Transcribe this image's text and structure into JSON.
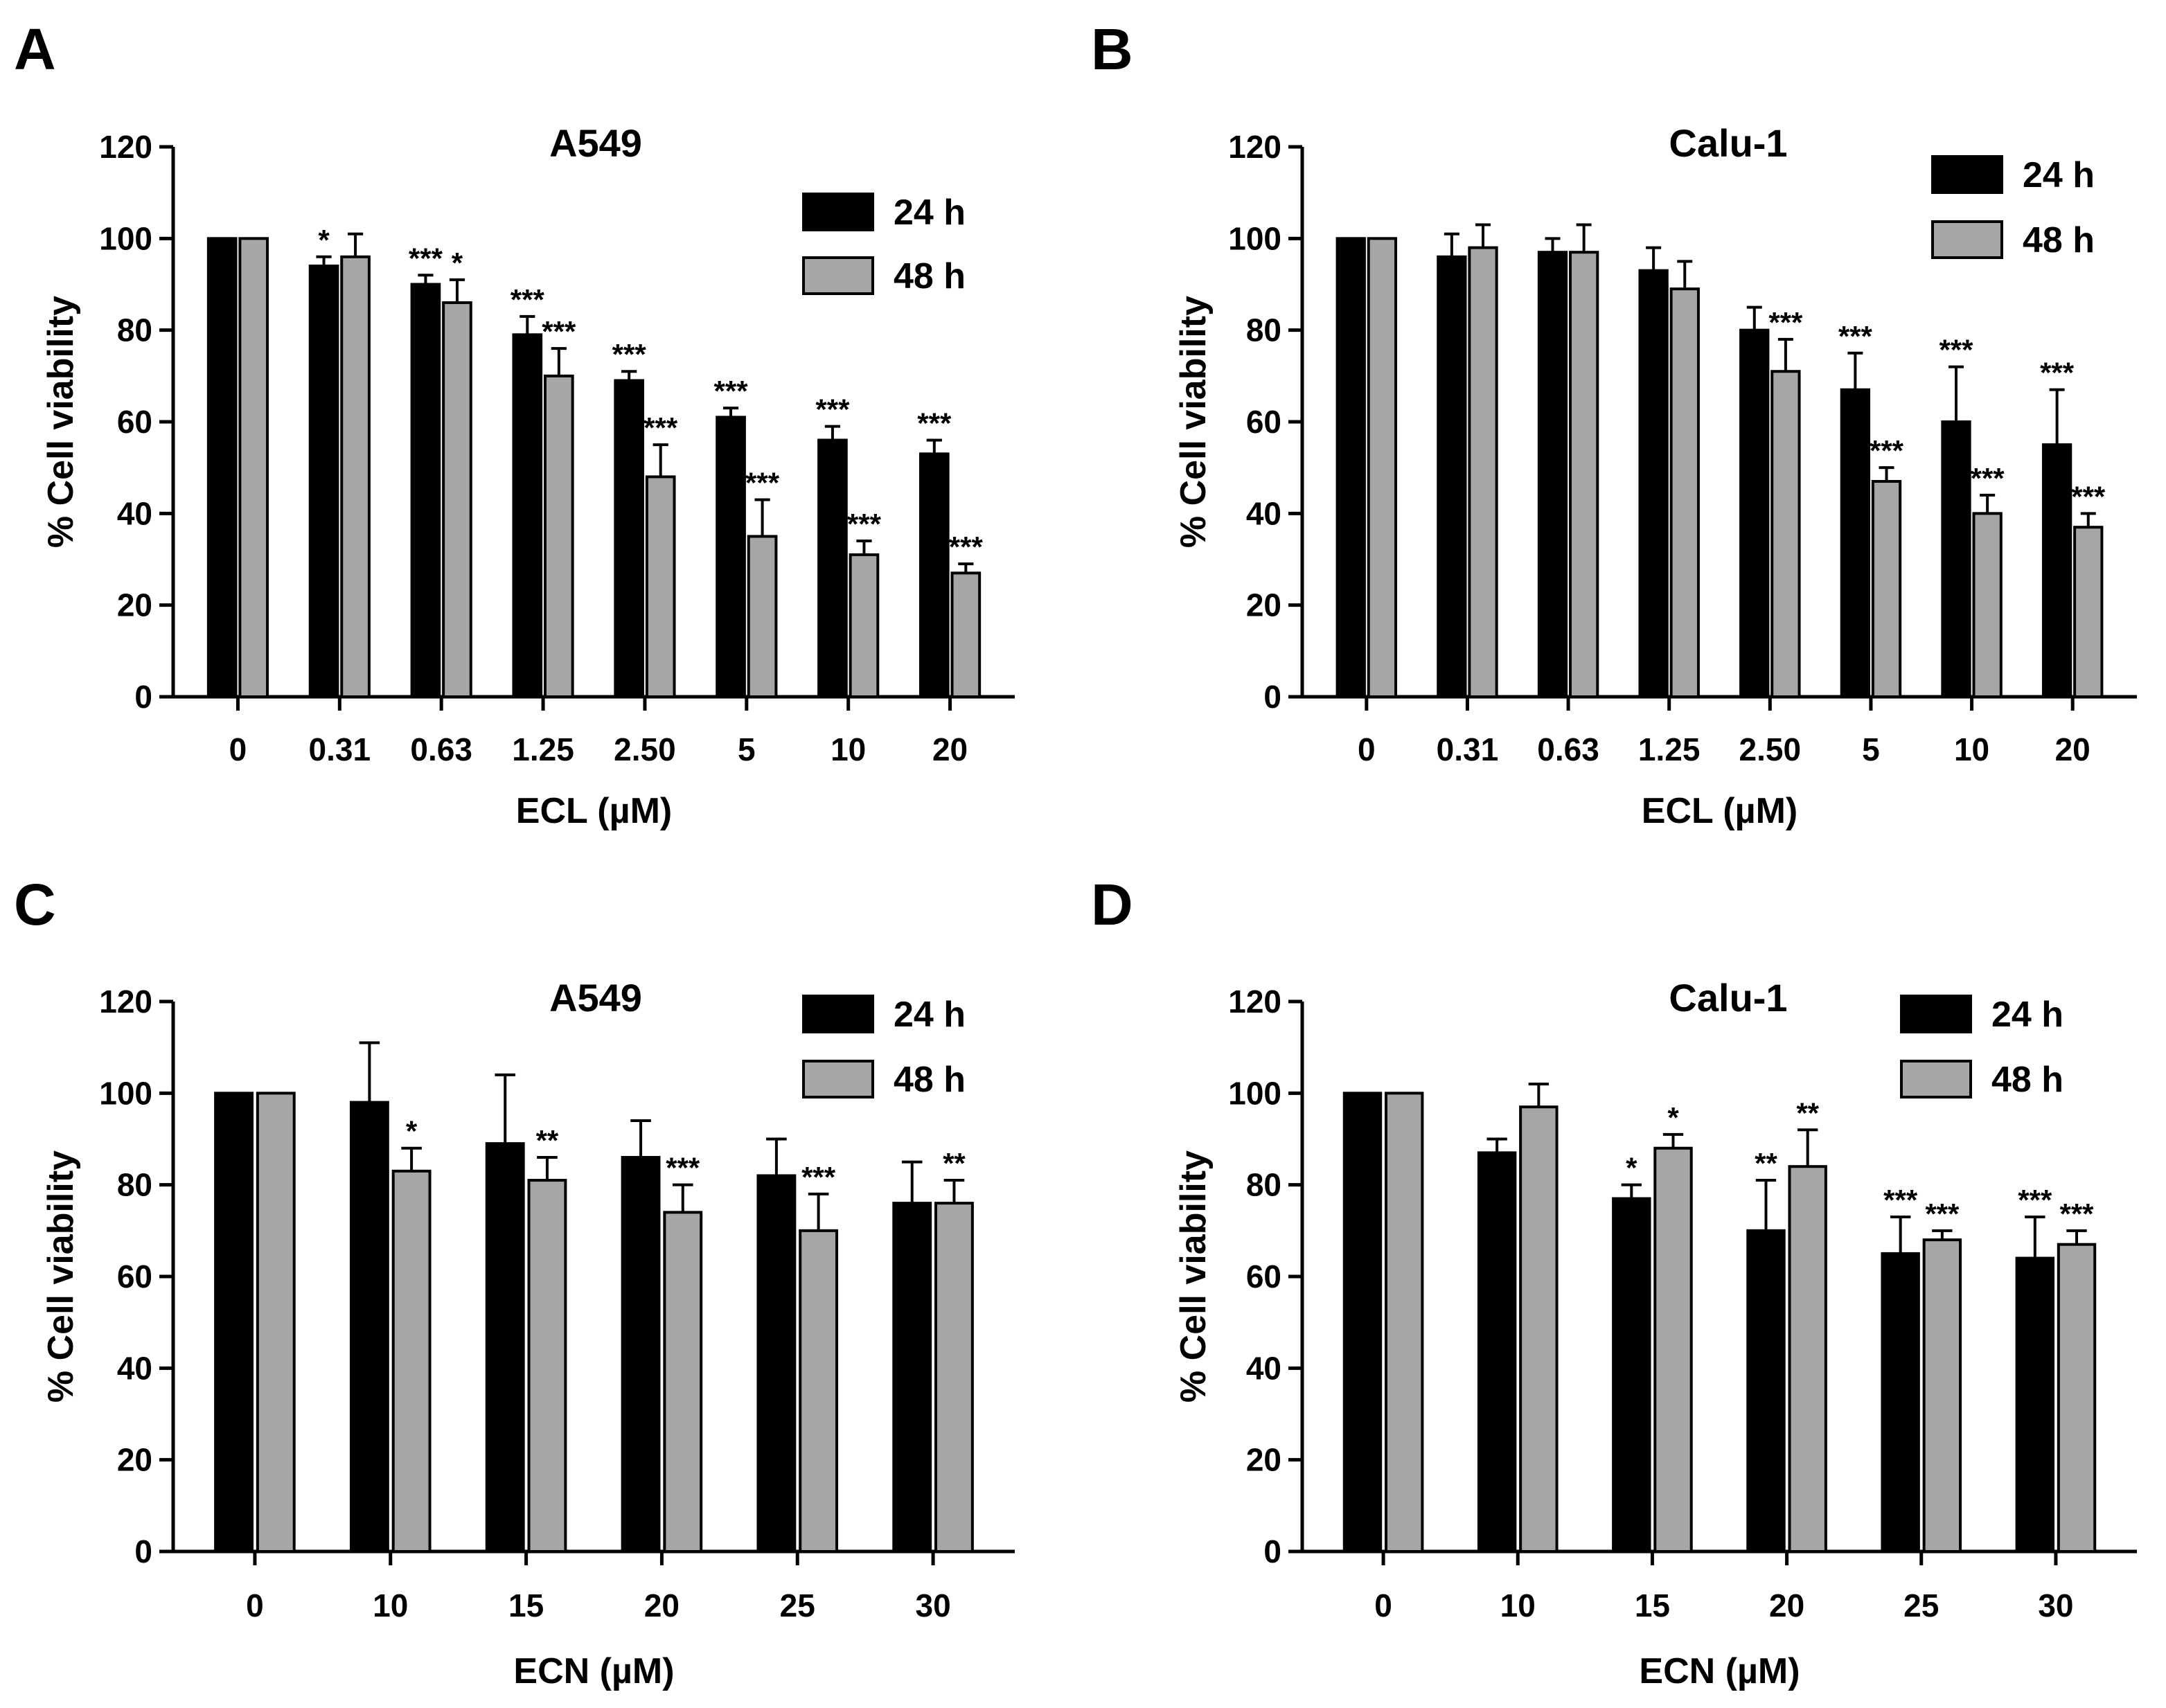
{
  "chart_data": [
    {
      "panel": "A",
      "type": "bar",
      "title": "A549",
      "xlabel": "ECL (µM)",
      "ylabel": "% Cell viability",
      "ylim": [
        0,
        120
      ],
      "yticks": [
        0,
        20,
        40,
        60,
        80,
        100,
        120
      ],
      "categories": [
        "0",
        "0.31",
        "0.63",
        "1.25",
        "2.50",
        "5",
        "10",
        "20"
      ],
      "series": [
        {
          "name": "24 h",
          "color": "#000000",
          "values": [
            100,
            94,
            90,
            79,
            69,
            61,
            56,
            53
          ],
          "errors": [
            0,
            2,
            2,
            4,
            2,
            2,
            3,
            3
          ],
          "stars": [
            "",
            "*",
            "***",
            "***",
            "***",
            "***",
            "***",
            "***"
          ]
        },
        {
          "name": "48 h",
          "color": "#a6a6a6",
          "values": [
            100,
            96,
            86,
            70,
            48,
            35,
            31,
            27
          ],
          "errors": [
            0,
            5,
            5,
            6,
            7,
            8,
            3,
            2
          ],
          "stars": [
            "",
            "",
            "*",
            "***",
            "***",
            "***",
            "***",
            "***"
          ]
        }
      ]
    },
    {
      "panel": "B",
      "type": "bar",
      "title": "Calu-1",
      "xlabel": "ECL (µM)",
      "ylabel": "% Cell viability",
      "ylim": [
        0,
        120
      ],
      "yticks": [
        0,
        20,
        40,
        60,
        80,
        100,
        120
      ],
      "categories": [
        "0",
        "0.31",
        "0.63",
        "1.25",
        "2.50",
        "5",
        "10",
        "20"
      ],
      "series": [
        {
          "name": "24 h",
          "color": "#000000",
          "values": [
            100,
            96,
            97,
            93,
            80,
            67,
            60,
            55
          ],
          "errors": [
            0,
            5,
            3,
            5,
            5,
            8,
            12,
            12
          ],
          "stars": [
            "",
            "",
            "",
            "",
            "",
            "***",
            "***",
            "***"
          ]
        },
        {
          "name": "48 h",
          "color": "#a6a6a6",
          "values": [
            100,
            98,
            97,
            89,
            71,
            47,
            40,
            37
          ],
          "errors": [
            0,
            5,
            6,
            6,
            7,
            3,
            4,
            3
          ],
          "stars": [
            "",
            "",
            "",
            "",
            "***",
            "***",
            "***",
            "***"
          ]
        }
      ]
    },
    {
      "panel": "C",
      "type": "bar",
      "title": "A549",
      "xlabel": "ECN (µM)",
      "ylabel": "% Cell viability",
      "ylim": [
        0,
        120
      ],
      "yticks": [
        0,
        20,
        40,
        60,
        80,
        100,
        120
      ],
      "categories": [
        "0",
        "10",
        "15",
        "20",
        "25",
        "30"
      ],
      "series": [
        {
          "name": "24 h",
          "color": "#000000",
          "values": [
            100,
            98,
            89,
            86,
            82,
            76
          ],
          "errors": [
            0,
            13,
            15,
            8,
            8,
            9
          ],
          "stars": [
            "",
            "",
            "",
            "",
            "",
            ""
          ]
        },
        {
          "name": "48 h",
          "color": "#a6a6a6",
          "values": [
            100,
            83,
            81,
            74,
            70,
            76
          ],
          "errors": [
            0,
            5,
            5,
            6,
            8,
            5
          ],
          "stars": [
            "",
            "*",
            "**",
            "***",
            "***",
            "**"
          ]
        }
      ]
    },
    {
      "panel": "D",
      "type": "bar",
      "title": "Calu-1",
      "xlabel": "ECN (µM)",
      "ylabel": "% Cell viability",
      "ylim": [
        0,
        120
      ],
      "yticks": [
        0,
        20,
        40,
        60,
        80,
        100,
        120
      ],
      "categories": [
        "0",
        "10",
        "15",
        "20",
        "25",
        "30"
      ],
      "series": [
        {
          "name": "24 h",
          "color": "#000000",
          "values": [
            100,
            87,
            77,
            70,
            65,
            64
          ],
          "errors": [
            0,
            3,
            3,
            11,
            8,
            9
          ],
          "stars": [
            "",
            "",
            "*",
            "**",
            "***",
            "***"
          ]
        },
        {
          "name": "48 h",
          "color": "#a6a6a6",
          "values": [
            100,
            97,
            88,
            84,
            68,
            67
          ],
          "errors": [
            0,
            5,
            3,
            8,
            2,
            3
          ],
          "stars": [
            "",
            "",
            "*",
            "**",
            "***",
            "***"
          ]
        }
      ]
    }
  ]
}
